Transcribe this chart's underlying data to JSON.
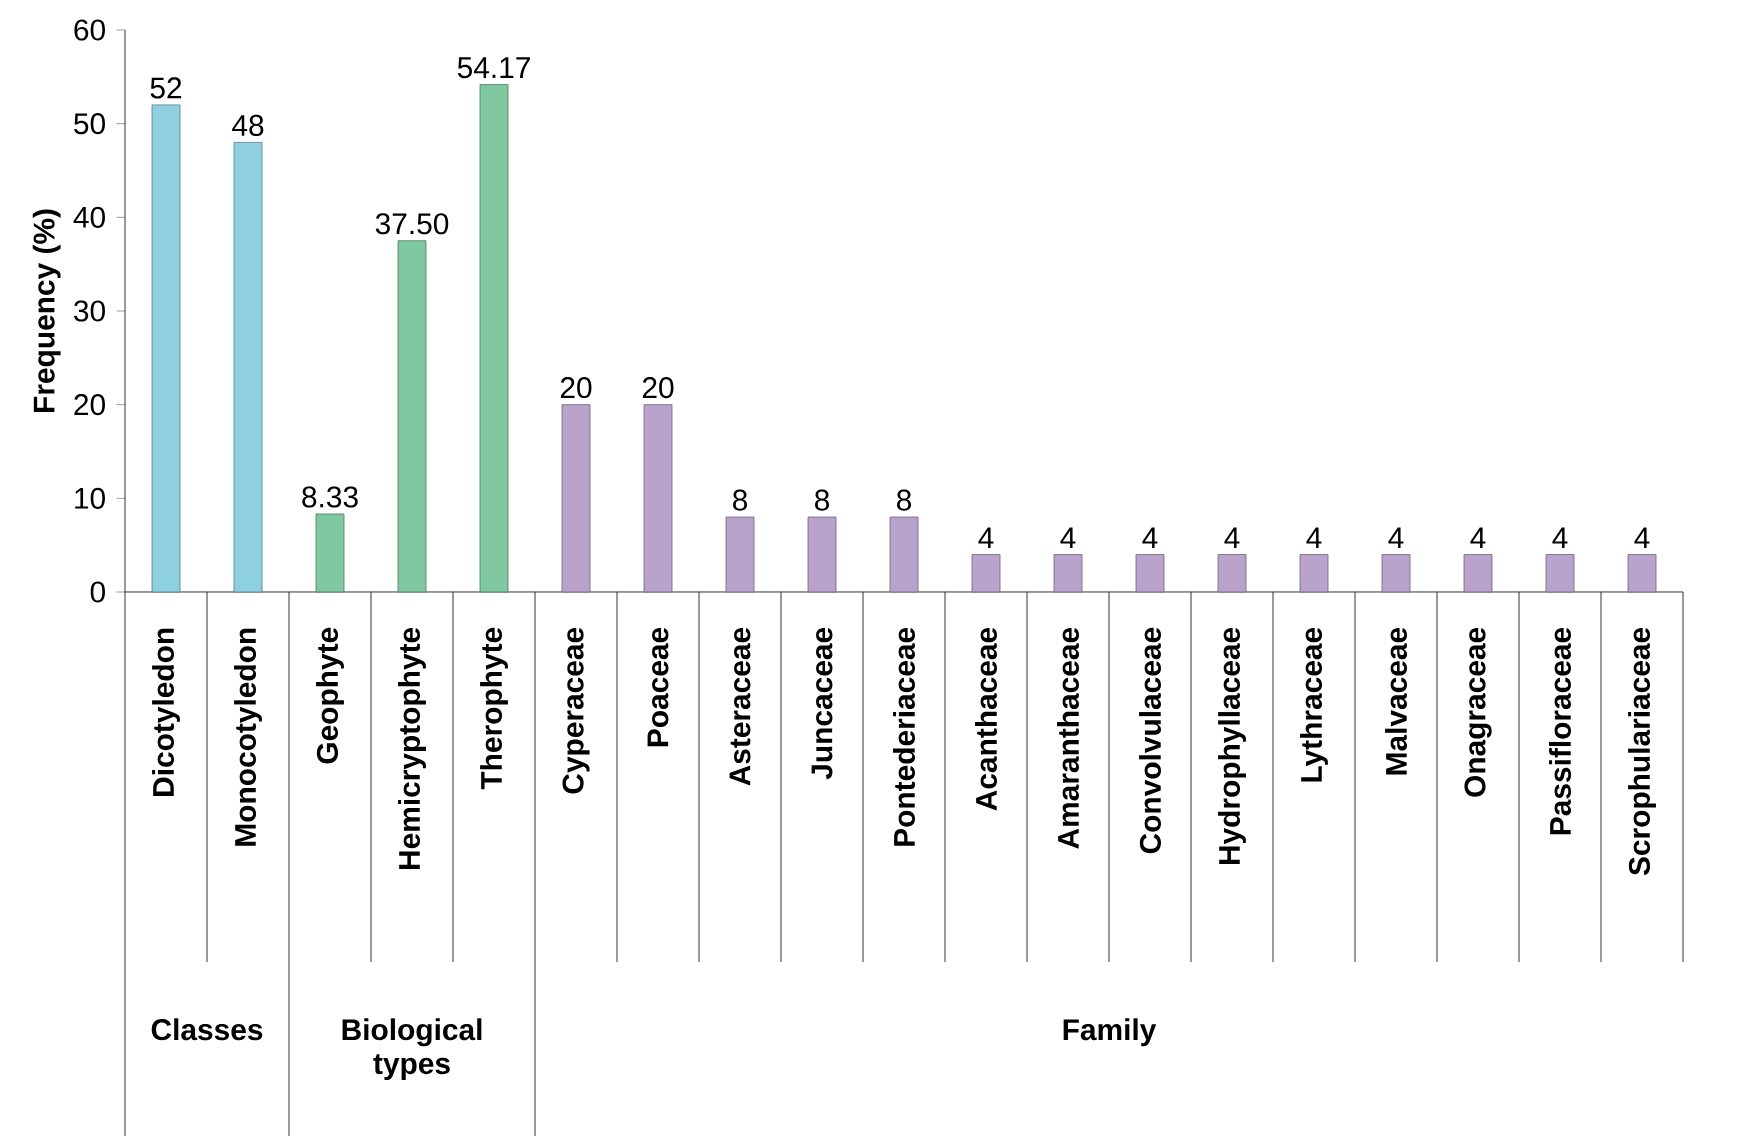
{
  "chart_data": {
    "type": "bar",
    "ylabel": "Frequency (%)",
    "categories": [
      "Dicotyledon",
      "Monocotyledon",
      "Geophyte",
      "Hemicryptophyte",
      "Therophyte",
      "Cyperaceae",
      "Poaceae",
      "Asteraceae",
      "Juncaceae",
      "Pontederiaceae",
      "Acanthaceae",
      "Amaranthaceae",
      "Convolvulaceae",
      "Hydrophyllaceae",
      "Lythraceae",
      "Malvaceae",
      "Onagraceae",
      "Passifloraceae",
      "Scrophulariaceae"
    ],
    "series": [
      {
        "color": "#8fd0e0",
        "values": [
          52,
          48,
          null,
          null,
          null,
          null,
          null,
          null,
          null,
          null,
          null,
          null,
          null,
          null,
          null,
          null,
          null,
          null,
          null
        ]
      },
      {
        "color": "#80c9a0",
        "values": [
          null,
          null,
          8.33,
          37.5,
          54.17,
          null,
          null,
          null,
          null,
          null,
          null,
          null,
          null,
          null,
          null,
          null,
          null,
          null,
          null
        ]
      },
      {
        "color": "#b9a3cc",
        "values": [
          null,
          null,
          null,
          null,
          null,
          20,
          20,
          8,
          8,
          8,
          4,
          4,
          4,
          4,
          4,
          4,
          4,
          4,
          4
        ]
      }
    ],
    "value_labels": [
      "52",
      "48",
      "8.33",
      "37.50",
      "54.17",
      "20",
      "20",
      "8",
      "8",
      "8",
      "4",
      "4",
      "4",
      "4",
      "4",
      "4",
      "4",
      "4",
      "4"
    ],
    "annotations": [
      "Classes",
      "Biological types",
      "Family"
    ],
    "ylim": [
      0,
      60
    ],
    "yticks": [
      0,
      10,
      20,
      30,
      40,
      50,
      60
    ],
    "grid": false
  }
}
